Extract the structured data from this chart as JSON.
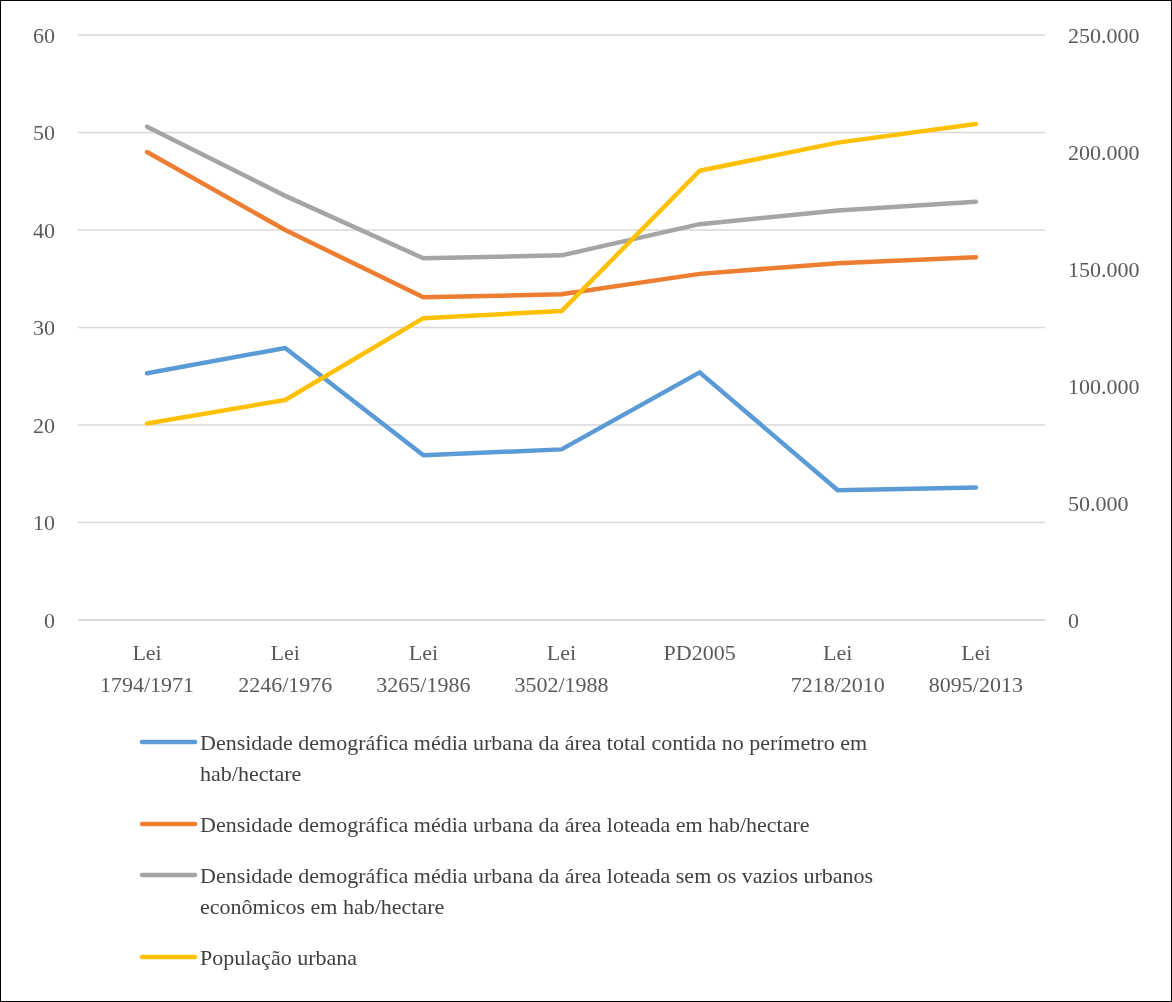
{
  "chart_data": {
    "type": "line",
    "categories": [
      "Lei 1794/1971",
      "Lei 2246/1976",
      "Lei 3265/1986",
      "Lei 3502/1988",
      "PD2005",
      "Lei 7218/2010",
      "Lei 8095/2013"
    ],
    "series": [
      {
        "name": "Densidade demográfica média urbana da área total contida no perímetro em hab/hectare",
        "color": "#5b9bd5",
        "values": [
          25.3,
          27.9,
          16.9,
          17.5,
          25.4,
          13.3,
          13.6
        ]
      },
      {
        "name": "Densidade demográfica média urbana da área loteada em hab/hectare",
        "color": "#ed7d31",
        "values": [
          48.0,
          40.0,
          33.1,
          33.4,
          35.5,
          36.6,
          37.2
        ]
      },
      {
        "name": "Densidade demográfica média urbana da área loteada sem os vazios urbanos econômicos em hab/hectare",
        "color": "#a5a5a5",
        "values": [
          50.6,
          43.5,
          37.1,
          37.4,
          40.6,
          42.0,
          42.9
        ]
      },
      {
        "name": "População urbana",
        "color": "#ffc000",
        "axis": "y2",
        "values": [
          84000,
          94000,
          129000,
          132000,
          192000,
          204000,
          212000
        ]
      }
    ],
    "ylim": [
      0,
      60
    ],
    "yticks": [
      0,
      10,
      20,
      30,
      40,
      50,
      60
    ],
    "y2lim": [
      0,
      250000
    ],
    "y2ticks": [
      0,
      {
        "value": 50000,
        "label": "50.000"
      },
      {
        "value": 100000,
        "label": "100.000"
      },
      {
        "value": 150000,
        "label": "150.000"
      },
      {
        "value": 200000,
        "label": "200.000"
      },
      {
        "value": 250000,
        "label": "250.000"
      }
    ],
    "grid": "y",
    "legend": "bottom",
    "marker": "none",
    "line_style": "solid"
  }
}
